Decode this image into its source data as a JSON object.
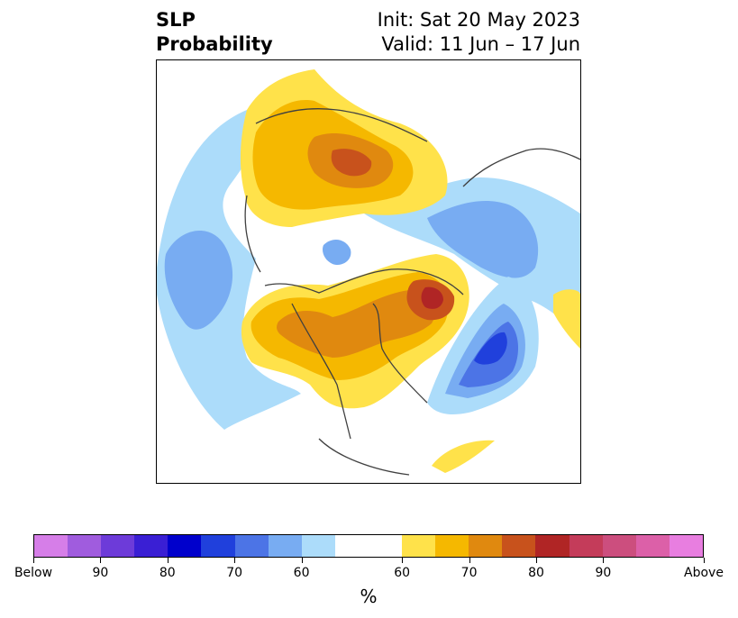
{
  "header": {
    "title_line1": "SLP",
    "title_line2": "Probability",
    "init": "Init: Sat 20 May 2023",
    "valid": "Valid: 11 Jun – 17 Jun"
  },
  "colorbar": {
    "unit": "%",
    "colors": [
      "#d67ee8",
      "#a05cde",
      "#6d3bd9",
      "#3a1fd4",
      "#0000cc",
      "#2040dc",
      "#4c74e6",
      "#78acf2",
      "#acdcfa",
      "#ffffff",
      "#ffe24a",
      "#f5b800",
      "#e0890f",
      "#c8521c",
      "#b02525",
      "#c43c5a",
      "#cc4e7e",
      "#dc60a8",
      "#e87ee0"
    ],
    "tick_labels": [
      "Below",
      "90",
      "80",
      "70",
      "60",
      "60",
      "70",
      "80",
      "90",
      "Above"
    ]
  },
  "map": {
    "background": "#ffffff",
    "coastline_color": "#404040"
  }
}
